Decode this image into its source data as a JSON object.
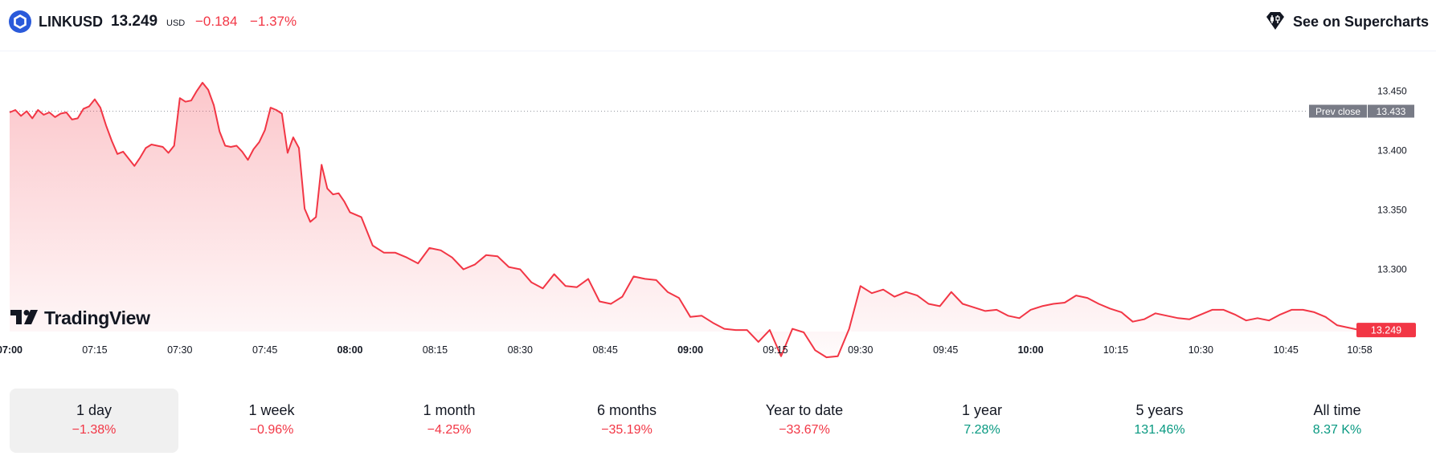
{
  "header": {
    "symbol": "LINKUSD",
    "price": "13.249",
    "currency": "USD",
    "change": "−0.184",
    "change_percent": "−1.37%",
    "supercharts_label": "See on Supercharts"
  },
  "brand": {
    "name": "TradingView"
  },
  "colors": {
    "line": "#f23645",
    "negative": "#f23645",
    "positive": "#089981",
    "prev_close_tag": "#787b86"
  },
  "chart_data": {
    "type": "area",
    "xlabel": "",
    "ylabel": "",
    "x_ticks": [
      {
        "label": "07:00",
        "bold": true
      },
      {
        "label": "07:15",
        "bold": false
      },
      {
        "label": "07:30",
        "bold": false
      },
      {
        "label": "07:45",
        "bold": false
      },
      {
        "label": "08:00",
        "bold": true
      },
      {
        "label": "08:15",
        "bold": false
      },
      {
        "label": "08:30",
        "bold": false
      },
      {
        "label": "08:45",
        "bold": false
      },
      {
        "label": "09:00",
        "bold": true
      },
      {
        "label": "09:15",
        "bold": false
      },
      {
        "label": "09:30",
        "bold": false
      },
      {
        "label": "09:45",
        "bold": false
      },
      {
        "label": "10:00",
        "bold": true
      },
      {
        "label": "10:15",
        "bold": false
      },
      {
        "label": "10:30",
        "bold": false
      },
      {
        "label": "10:45",
        "bold": false
      },
      {
        "label": "10:58",
        "bold": false
      }
    ],
    "y_ticks": [
      "13.450",
      "13.400",
      "13.350",
      "13.300"
    ],
    "ylim": [
      13.245,
      13.459
    ],
    "prev_close": {
      "label": "Prev close",
      "value": 13.433,
      "value_label": "13.433"
    },
    "last": {
      "value": 13.249,
      "label": "13.249"
    },
    "series": [
      {
        "x": [
          "07:00",
          "07:01",
          "07:02",
          "07:03",
          "07:04",
          "07:05",
          "07:06",
          "07:07",
          "07:08",
          "07:09",
          "07:10",
          "07:11",
          "07:12",
          "07:13",
          "07:14",
          "07:15",
          "07:16",
          "07:17",
          "07:18",
          "07:19",
          "07:20",
          "07:21",
          "07:22",
          "07:23",
          "07:24",
          "07:25",
          "07:26",
          "07:27",
          "07:28",
          "07:29",
          "07:30",
          "07:31",
          "07:32",
          "07:33",
          "07:34",
          "07:35",
          "07:36",
          "07:37",
          "07:38",
          "07:39",
          "07:40",
          "07:41",
          "07:42",
          "07:43",
          "07:44",
          "07:45",
          "07:46",
          "07:47",
          "07:48",
          "07:49",
          "07:50",
          "07:51",
          "07:52",
          "07:53",
          "07:54",
          "07:55",
          "07:56",
          "07:57",
          "07:58",
          "07:59",
          "08:00",
          "08:02",
          "08:04",
          "08:06",
          "08:08",
          "08:10",
          "08:12",
          "08:14",
          "08:16",
          "08:18",
          "08:20",
          "08:22",
          "08:24",
          "08:26",
          "08:28",
          "08:30",
          "08:32",
          "08:34",
          "08:36",
          "08:38",
          "08:40",
          "08:42",
          "08:44",
          "08:46",
          "08:48",
          "08:50",
          "08:52",
          "08:54",
          "08:56",
          "08:58",
          "09:00",
          "09:02",
          "09:04",
          "09:06",
          "09:08",
          "09:10",
          "09:12",
          "09:14",
          "09:16",
          "09:18",
          "09:20",
          "09:22",
          "09:24",
          "09:26",
          "09:28",
          "09:30",
          "09:32",
          "09:34",
          "09:36",
          "09:38",
          "09:40",
          "09:42",
          "09:44",
          "09:46",
          "09:48",
          "09:50",
          "09:52",
          "09:54",
          "09:56",
          "09:58",
          "10:00",
          "10:02",
          "10:04",
          "10:06",
          "10:08",
          "10:10",
          "10:12",
          "10:14",
          "10:16",
          "10:18",
          "10:20",
          "10:22",
          "10:24",
          "10:26",
          "10:28",
          "10:30",
          "10:32",
          "10:34",
          "10:36",
          "10:38",
          "10:40",
          "10:42",
          "10:44",
          "10:46",
          "10:48",
          "10:50",
          "10:52",
          "10:54",
          "10:56",
          "10:58"
        ],
        "y": [
          13.432,
          13.434,
          13.429,
          13.433,
          13.427,
          13.434,
          13.43,
          13.432,
          13.428,
          13.431,
          13.432,
          13.426,
          13.427,
          13.435,
          13.437,
          13.443,
          13.436,
          13.421,
          13.408,
          13.397,
          13.399,
          13.393,
          13.387,
          13.394,
          13.402,
          13.405,
          13.404,
          13.403,
          13.398,
          13.404,
          13.444,
          13.441,
          13.442,
          13.45,
          13.457,
          13.451,
          13.438,
          13.416,
          13.404,
          13.403,
          13.404,
          13.399,
          13.392,
          13.401,
          13.407,
          13.417,
          13.436,
          13.434,
          13.431,
          13.398,
          13.411,
          13.402,
          13.351,
          13.34,
          13.344,
          13.388,
          13.368,
          13.363,
          13.364,
          13.357,
          13.348,
          13.344,
          13.32,
          13.314,
          13.314,
          13.31,
          13.305,
          13.318,
          13.316,
          13.31,
          13.3,
          13.304,
          13.312,
          13.311,
          13.302,
          13.3,
          13.289,
          13.284,
          13.296,
          13.286,
          13.285,
          13.292,
          13.273,
          13.271,
          13.277,
          13.294,
          13.292,
          13.291,
          13.281,
          13.276,
          13.26,
          13.261,
          13.255,
          13.25,
          13.249,
          13.249,
          13.239,
          13.249,
          13.227,
          13.25,
          13.247,
          13.232,
          13.226,
          13.227,
          13.25,
          13.286,
          13.28,
          13.283,
          13.277,
          13.281,
          13.278,
          13.271,
          13.269,
          13.281,
          13.271,
          13.268,
          13.265,
          13.266,
          13.261,
          13.259,
          13.266,
          13.269,
          13.271,
          13.272,
          13.278,
          13.276,
          13.271,
          13.267,
          13.264,
          13.256,
          13.258,
          13.263,
          13.261,
          13.259,
          13.258,
          13.262,
          13.266,
          13.266,
          13.262,
          13.257,
          13.259,
          13.257,
          13.262,
          13.266,
          13.266,
          13.264,
          13.26,
          13.253,
          13.251,
          13.249
        ]
      }
    ]
  },
  "periods": [
    {
      "label": "1 day",
      "value": "−1.38%",
      "trend": "neg",
      "active": true
    },
    {
      "label": "1 week",
      "value": "−0.96%",
      "trend": "neg",
      "active": false
    },
    {
      "label": "1 month",
      "value": "−4.25%",
      "trend": "neg",
      "active": false
    },
    {
      "label": "6 months",
      "value": "−35.19%",
      "trend": "neg",
      "active": false
    },
    {
      "label": "Year to date",
      "value": "−33.67%",
      "trend": "neg",
      "active": false
    },
    {
      "label": "1 year",
      "value": "7.28%",
      "trend": "pos",
      "active": false
    },
    {
      "label": "5 years",
      "value": "131.46%",
      "trend": "pos",
      "active": false
    },
    {
      "label": "All time",
      "value": "8.37 K%",
      "trend": "pos",
      "active": false
    }
  ]
}
